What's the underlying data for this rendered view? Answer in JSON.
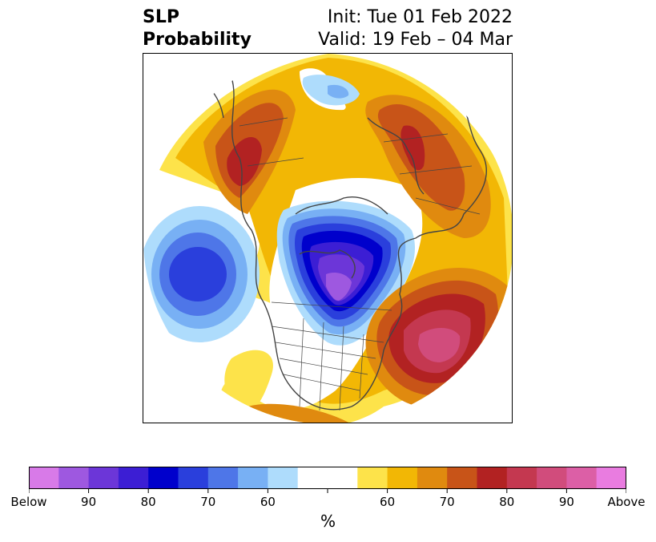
{
  "header": {
    "title_line1": "SLP",
    "title_line2": "Probability",
    "init_text": "Init: Tue 01 Feb 2022",
    "valid_text": "Valid: 19 Feb – 04 Mar"
  },
  "map": {
    "projection": "north-polar-stereographic",
    "features": [
      "coastlines",
      "country-borders",
      "state-borders"
    ],
    "anomaly_regions": [
      {
        "name": "north-america-below",
        "category": "below",
        "max_percent": 90
      },
      {
        "name": "north-pacific-below",
        "category": "below",
        "max_percent": 80
      },
      {
        "name": "north-atlantic-above",
        "category": "above",
        "max_percent": 90
      },
      {
        "name": "europe-above",
        "category": "above",
        "max_percent": 80
      },
      {
        "name": "asia-above",
        "category": "above",
        "max_percent": 80
      }
    ]
  },
  "colorbar": {
    "below_colors": [
      "#d87ae8",
      "#9e58e0",
      "#6c36d8",
      "#3c1ed4",
      "#0000cc",
      "#2a3fdc",
      "#4e76e8",
      "#78b0f4",
      "#aedcfc"
    ],
    "neutral_color": "#ffffff",
    "above_colors": [
      "#fde34a",
      "#f2b705",
      "#e08a0f",
      "#c85418",
      "#b22222",
      "#c43850",
      "#d14c7c",
      "#dc5fa6",
      "#e97ce0"
    ],
    "tick_labels": [
      "Below",
      "90",
      "80",
      "70",
      "60",
      "60",
      "70",
      "80",
      "90",
      "Above"
    ],
    "unit": "%"
  }
}
